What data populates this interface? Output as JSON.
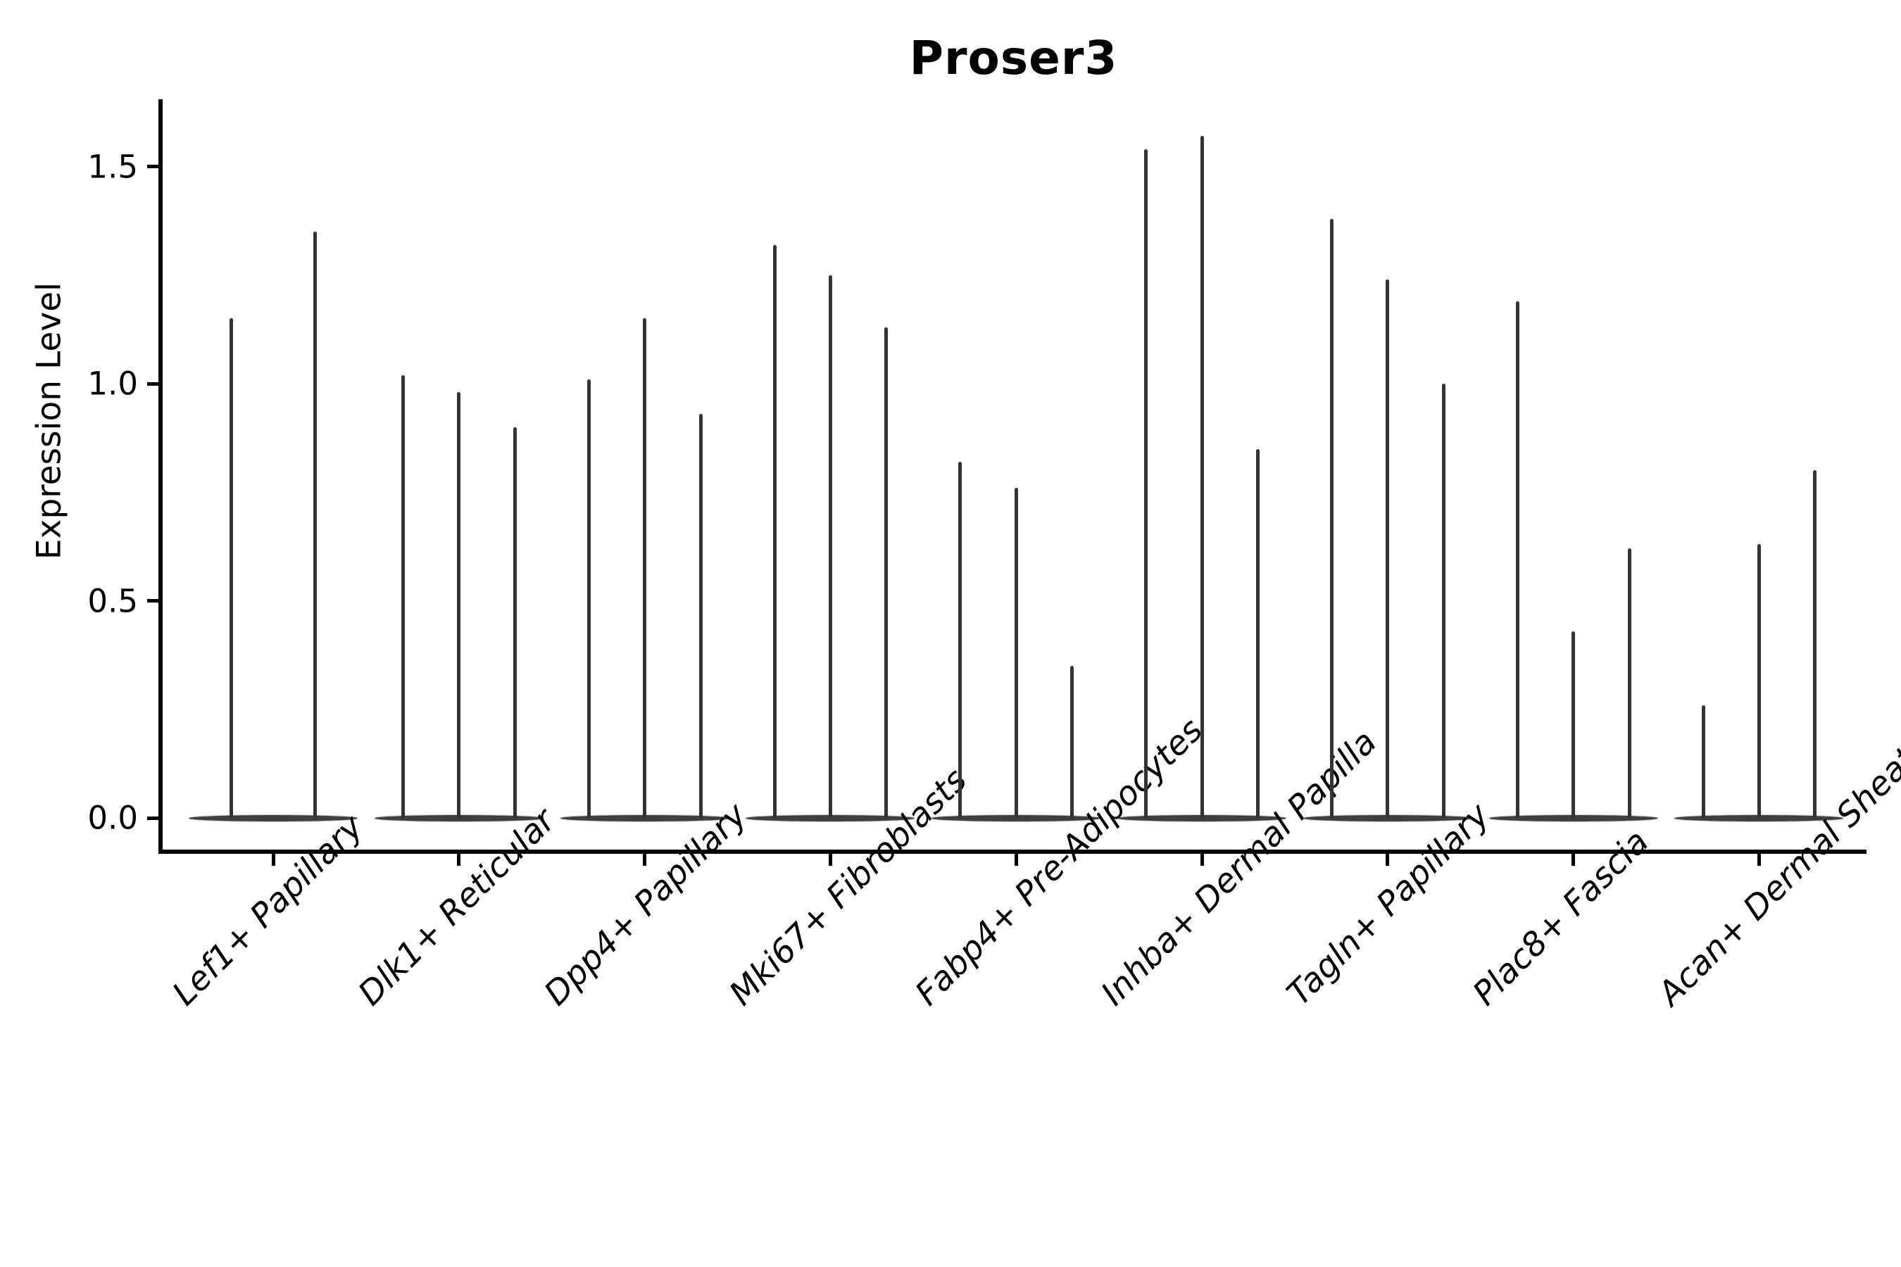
{
  "title": "Proser3",
  "ylabel": "Expression Level",
  "chart_data": {
    "type": "violin",
    "title": "Proser3",
    "xlabel": "",
    "ylabel": "Expression Level",
    "ylim": [
      -0.08,
      1.66
    ],
    "yticks": [
      0.0,
      0.5,
      1.0,
      1.5
    ],
    "ytick_labels": [
      "0.0",
      "0.5",
      "1.0",
      "1.5"
    ],
    "grid": false,
    "legend_position": "none",
    "shape_note": "Each violin's mass is concentrated at 0 (flat lens at baseline) with a single thin spike rising to its maximum expression value",
    "categories": [
      "Lef1+ Papillary",
      "Dlk1+ Reticular",
      "Dpp4+ Papillary",
      "Mki67+ Fibroblasts",
      "Fabp4+ Pre-Adipocytes",
      "Inhba+ Dermal Papilla",
      "Tagln+ Papillary",
      "Plac8+ Fascia",
      "Acan+ Dermal Sheath"
    ],
    "groups": [
      {
        "category": "Lef1+ Papillary",
        "violin_max_values": [
          1.15,
          1.35
        ]
      },
      {
        "category": "Dlk1+ Reticular",
        "violin_max_values": [
          1.02,
          0.98,
          0.9
        ]
      },
      {
        "category": "Dpp4+ Papillary",
        "violin_max_values": [
          1.01,
          1.15,
          0.93
        ]
      },
      {
        "category": "Mki67+ Fibroblasts",
        "violin_max_values": [
          1.32,
          1.25,
          1.13
        ]
      },
      {
        "category": "Fabp4+ Pre-Adipocytes",
        "violin_max_values": [
          0.82,
          0.76,
          0.35
        ]
      },
      {
        "category": "Inhba+ Dermal Papilla",
        "violin_max_values": [
          1.54,
          1.57,
          0.85
        ]
      },
      {
        "category": "Tagln+ Papillary",
        "violin_max_values": [
          1.38,
          1.24,
          1.0
        ]
      },
      {
        "category": "Plac8+ Fascia",
        "violin_max_values": [
          1.19,
          0.43,
          0.62
        ]
      },
      {
        "category": "Acan+ Dermal Sheath",
        "violin_max_values": [
          0.26,
          0.63,
          0.8
        ]
      }
    ],
    "colors": {
      "violin": "#333333",
      "violin_base": "#3f3f3f",
      "axis": "#000000",
      "background": "#ffffff"
    }
  }
}
